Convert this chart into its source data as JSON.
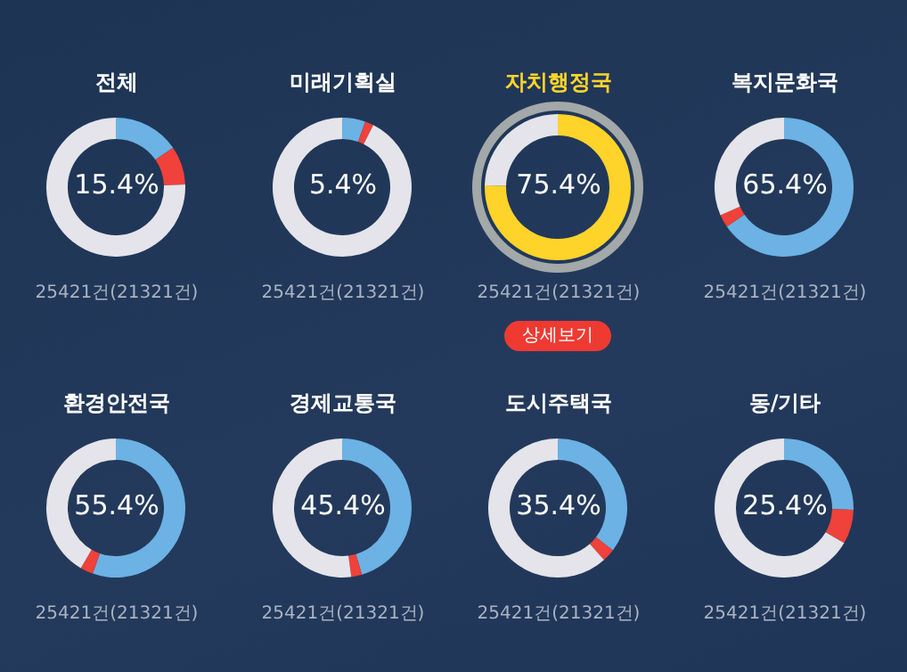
{
  "chart_data": [
    {
      "type": "donut",
      "title": "전체",
      "categories": [
        null,
        null,
        null
      ],
      "values": [
        15.4,
        9,
        75.6
      ],
      "colors": [
        "#6cb2e4",
        "#f0413a",
        "#e4e4ea"
      ],
      "annotations": [
        "15.4%",
        "25421건(21321건)"
      ]
    },
    {
      "type": "donut",
      "title": "미래기획실",
      "categories": [
        null,
        null,
        null
      ],
      "values": [
        5.4,
        2,
        92.6
      ],
      "colors": [
        "#6cb2e4",
        "#f0413a",
        "#e4e4ea"
      ],
      "annotations": [
        "5.4%",
        "25421건(21321건)"
      ]
    },
    {
      "type": "donut",
      "title": "자치행정국",
      "categories": [
        null,
        null
      ],
      "values": [
        75.4,
        24.6
      ],
      "colors": [
        "#fed32a",
        "#e4e4ea"
      ],
      "annotations": [
        "75.4%",
        "25421건(21321건)",
        "상세보기"
      ]
    },
    {
      "type": "donut",
      "title": "복지문화국",
      "categories": [
        null,
        null,
        null
      ],
      "values": [
        65.4,
        3,
        31.6
      ],
      "colors": [
        "#6cb2e4",
        "#f0413a",
        "#e4e4ea"
      ],
      "annotations": [
        "65.4%",
        "25421건(21321건)"
      ]
    },
    {
      "type": "donut",
      "title": "환경안전국",
      "categories": [
        null,
        null,
        null
      ],
      "values": [
        55.4,
        3,
        41.6
      ],
      "colors": [
        "#6cb2e4",
        "#f0413a",
        "#e4e4ea"
      ],
      "annotations": [
        "55.4%",
        "25421건(21321건)"
      ]
    },
    {
      "type": "donut",
      "title": "경제교통국",
      "categories": [
        null,
        null,
        null
      ],
      "values": [
        45.4,
        2.5,
        52.1
      ],
      "colors": [
        "#6cb2e4",
        "#f0413a",
        "#e4e4ea"
      ],
      "annotations": [
        "45.4%",
        "25421건(21321건)"
      ]
    },
    {
      "type": "donut",
      "title": "도시주택국",
      "categories": [
        null,
        null,
        null
      ],
      "values": [
        35.4,
        3,
        61.6
      ],
      "colors": [
        "#6cb2e4",
        "#f0413a",
        "#e4e4ea"
      ],
      "annotations": [
        "35.4%",
        "25421건(21321건)"
      ]
    },
    {
      "type": "donut",
      "title": "동/기타",
      "categories": [
        null,
        null,
        null
      ],
      "values": [
        25.4,
        8,
        66.6
      ],
      "colors": [
        "#6cb2e4",
        "#f0413a",
        "#e4e4ea"
      ],
      "annotations": [
        "25.4%",
        "25421건(21321건)"
      ]
    }
  ]
}
